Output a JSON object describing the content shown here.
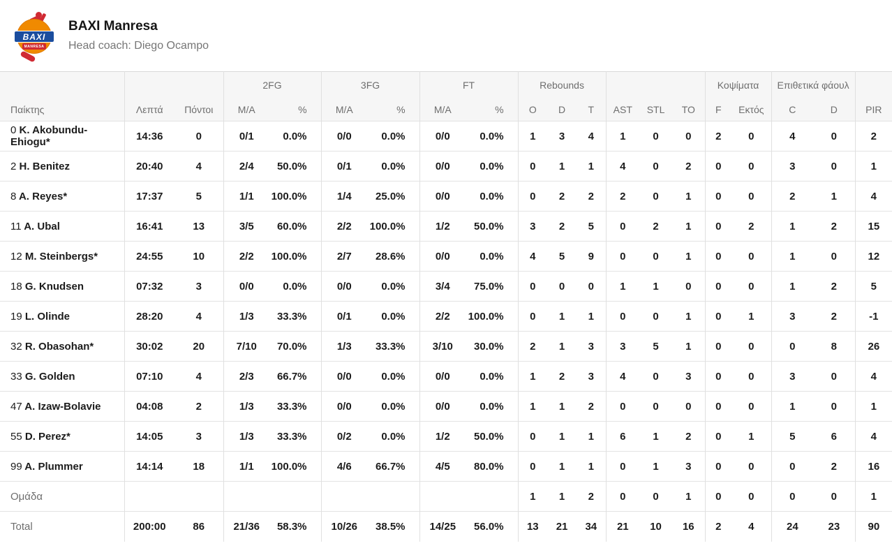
{
  "header": {
    "team_name": "BAXI Manresa",
    "coach": "Head coach: Diego Ocampo",
    "logo_text": "BAXI",
    "logo_subtext": "MANRESA",
    "logo_colors": {
      "orange": "#f08a00",
      "blue": "#1b4d9e",
      "red": "#d02a33"
    }
  },
  "table": {
    "groups": [
      "2FG",
      "3FG",
      "FT",
      "Rebounds",
      "Κοψίματα",
      "Επιθετικά φάουλ"
    ],
    "columns": [
      "Παίκτης",
      "Λεπτά",
      "Πόντοι",
      "M/A",
      "%",
      "M/A",
      "%",
      "M/A",
      "%",
      "O",
      "D",
      "T",
      "AST",
      "STL",
      "TO",
      "F",
      "Εκτός",
      "C",
      "D",
      "PIR"
    ],
    "players": [
      {
        "num": "0",
        "name": "K. Akobundu-Ehiogu*",
        "stats": [
          "14:36",
          "0",
          "0/1",
          "0.0%",
          "0/0",
          "0.0%",
          "0/0",
          "0.0%",
          "1",
          "3",
          "4",
          "1",
          "0",
          "0",
          "2",
          "0",
          "4",
          "0",
          "2"
        ]
      },
      {
        "num": "2",
        "name": "H. Benitez",
        "stats": [
          "20:40",
          "4",
          "2/4",
          "50.0%",
          "0/1",
          "0.0%",
          "0/0",
          "0.0%",
          "0",
          "1",
          "1",
          "4",
          "0",
          "2",
          "0",
          "0",
          "3",
          "0",
          "1"
        ]
      },
      {
        "num": "8",
        "name": "A. Reyes*",
        "stats": [
          "17:37",
          "5",
          "1/1",
          "100.0%",
          "1/4",
          "25.0%",
          "0/0",
          "0.0%",
          "0",
          "2",
          "2",
          "2",
          "0",
          "1",
          "0",
          "0",
          "2",
          "1",
          "4"
        ]
      },
      {
        "num": "11",
        "name": "A. Ubal",
        "stats": [
          "16:41",
          "13",
          "3/5",
          "60.0%",
          "2/2",
          "100.0%",
          "1/2",
          "50.0%",
          "3",
          "2",
          "5",
          "0",
          "2",
          "1",
          "0",
          "2",
          "1",
          "2",
          "15"
        ]
      },
      {
        "num": "12",
        "name": "M. Steinbergs*",
        "stats": [
          "24:55",
          "10",
          "2/2",
          "100.0%",
          "2/7",
          "28.6%",
          "0/0",
          "0.0%",
          "4",
          "5",
          "9",
          "0",
          "0",
          "1",
          "0",
          "0",
          "1",
          "0",
          "12"
        ]
      },
      {
        "num": "18",
        "name": "G. Knudsen",
        "stats": [
          "07:32",
          "3",
          "0/0",
          "0.0%",
          "0/0",
          "0.0%",
          "3/4",
          "75.0%",
          "0",
          "0",
          "0",
          "1",
          "1",
          "0",
          "0",
          "0",
          "1",
          "2",
          "5"
        ]
      },
      {
        "num": "19",
        "name": "L. Olinde",
        "stats": [
          "28:20",
          "4",
          "1/3",
          "33.3%",
          "0/1",
          "0.0%",
          "2/2",
          "100.0%",
          "0",
          "1",
          "1",
          "0",
          "0",
          "1",
          "0",
          "1",
          "3",
          "2",
          "-1"
        ]
      },
      {
        "num": "32",
        "name": "R. Obasohan*",
        "stats": [
          "30:02",
          "20",
          "7/10",
          "70.0%",
          "1/3",
          "33.3%",
          "3/10",
          "30.0%",
          "2",
          "1",
          "3",
          "3",
          "5",
          "1",
          "0",
          "0",
          "0",
          "8",
          "26"
        ]
      },
      {
        "num": "33",
        "name": "G. Golden",
        "stats": [
          "07:10",
          "4",
          "2/3",
          "66.7%",
          "0/0",
          "0.0%",
          "0/0",
          "0.0%",
          "1",
          "2",
          "3",
          "4",
          "0",
          "3",
          "0",
          "0",
          "3",
          "0",
          "4"
        ]
      },
      {
        "num": "47",
        "name": "A. Izaw-Bolavie",
        "stats": [
          "04:08",
          "2",
          "1/3",
          "33.3%",
          "0/0",
          "0.0%",
          "0/0",
          "0.0%",
          "1",
          "1",
          "2",
          "0",
          "0",
          "0",
          "0",
          "0",
          "1",
          "0",
          "1"
        ]
      },
      {
        "num": "55",
        "name": "D. Perez*",
        "stats": [
          "14:05",
          "3",
          "1/3",
          "33.3%",
          "0/2",
          "0.0%",
          "1/2",
          "50.0%",
          "0",
          "1",
          "1",
          "6",
          "1",
          "2",
          "0",
          "1",
          "5",
          "6",
          "4"
        ]
      },
      {
        "num": "99",
        "name": "A. Plummer",
        "stats": [
          "14:14",
          "18",
          "1/1",
          "100.0%",
          "4/6",
          "66.7%",
          "4/5",
          "80.0%",
          "0",
          "1",
          "1",
          "0",
          "1",
          "3",
          "0",
          "0",
          "0",
          "2",
          "16"
        ]
      }
    ],
    "team_row": {
      "label": "Ομάδα",
      "stats": [
        "",
        "",
        "",
        "",
        "",
        "",
        "",
        "",
        "1",
        "1",
        "2",
        "0",
        "0",
        "1",
        "0",
        "0",
        "0",
        "0",
        "1"
      ]
    },
    "total_row": {
      "label": "Total",
      "stats": [
        "200:00",
        "86",
        "21/36",
        "58.3%",
        "10/26",
        "38.5%",
        "14/25",
        "56.0%",
        "13",
        "21",
        "34",
        "21",
        "10",
        "16",
        "2",
        "4",
        "24",
        "23",
        "90"
      ]
    }
  }
}
